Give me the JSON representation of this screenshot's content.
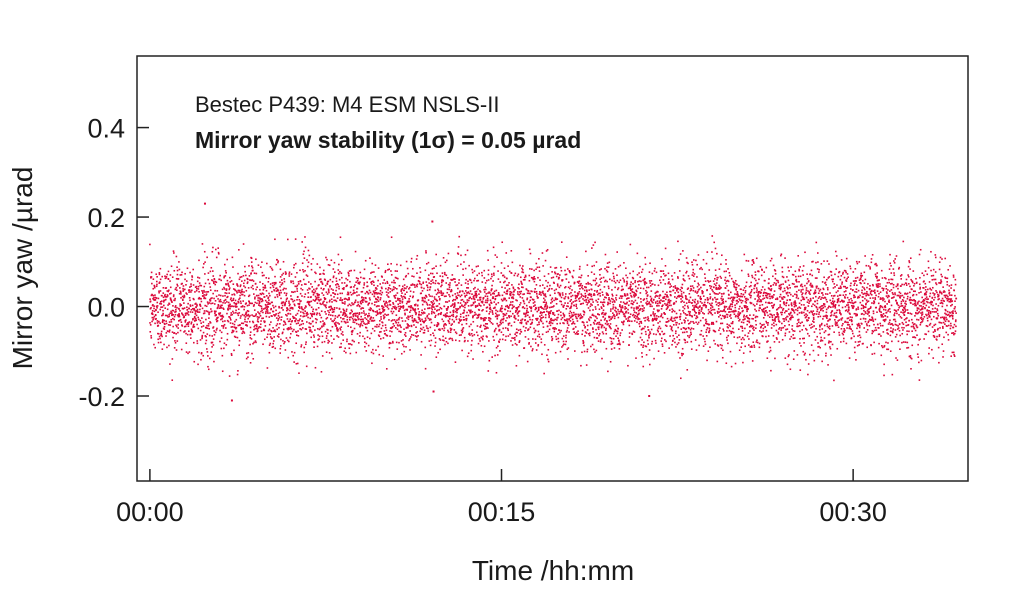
{
  "chart_data": {
    "type": "scatter",
    "title": "Bestec P439: M4 ESM NSLS-II",
    "subtitle": "Mirror yaw stability (1σ) = 0.05 µrad",
    "xlabel": "Time /hh:mm",
    "ylabel": "Mirror yaw /µrad",
    "x_unit": "minutes",
    "xlim": [
      -0.55,
      34.9
    ],
    "ylim": [
      -0.39,
      0.56
    ],
    "x_ticks": [
      {
        "value": 0,
        "label": "00:00"
      },
      {
        "value": 15,
        "label": "00:15"
      },
      {
        "value": 30,
        "label": "00:30"
      }
    ],
    "y_ticks": [
      {
        "value": 0.4,
        "label": "0.4"
      },
      {
        "value": 0.2,
        "label": "0.2"
      },
      {
        "value": 0.0,
        "label": "0.0"
      },
      {
        "value": -0.2,
        "label": "-0.2"
      }
    ],
    "grid": false,
    "legend": "none",
    "series": [
      {
        "color": "#dc0a3c",
        "x_range": [
          0,
          34.4
        ],
        "mean": 0.0,
        "std": 0.05,
        "notable_points": [
          {
            "x": 2.35,
            "y": 0.23
          },
          {
            "x": 3.5,
            "y": -0.21
          },
          {
            "x": 12.05,
            "y": 0.19
          },
          {
            "x": 12.1,
            "y": -0.19
          },
          {
            "x": 21.3,
            "y": -0.2
          }
        ]
      }
    ]
  }
}
